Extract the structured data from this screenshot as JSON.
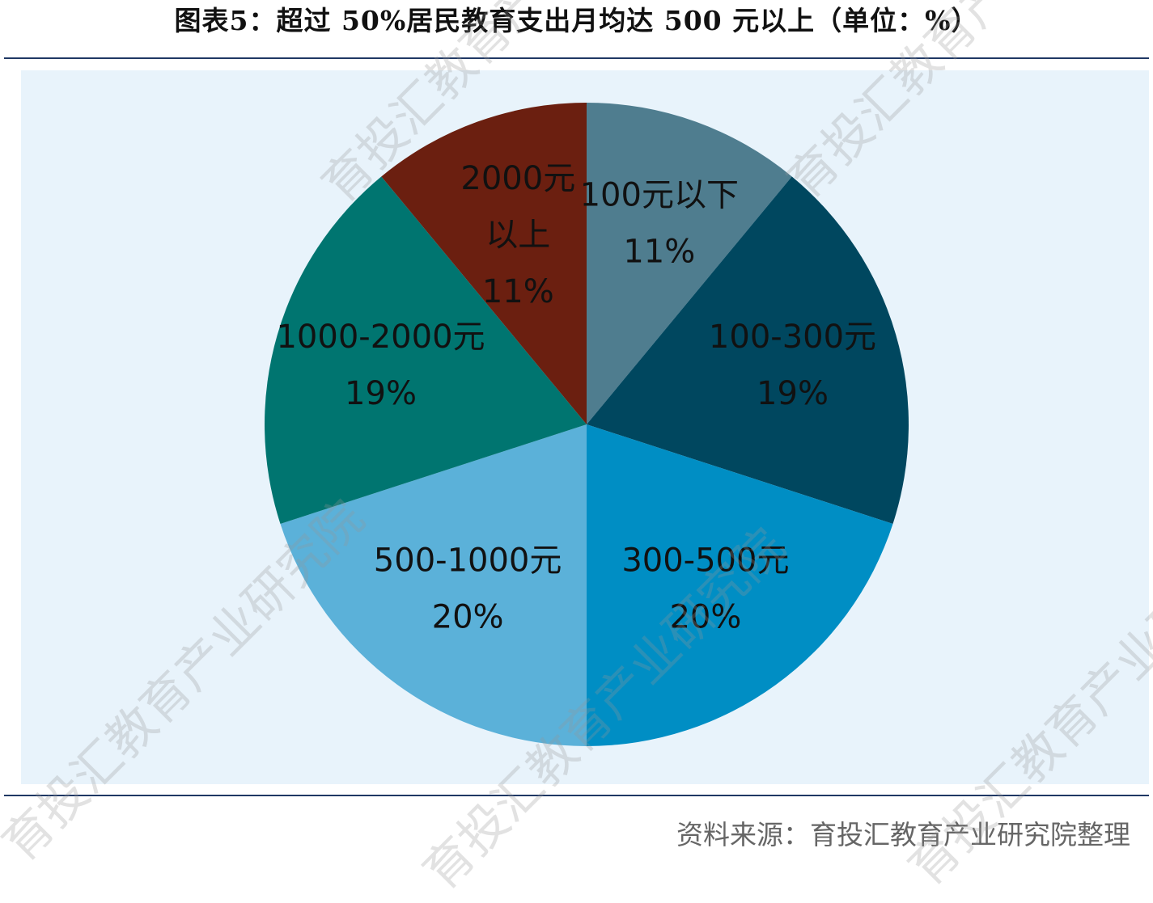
{
  "title": "图表5：超过 50%居民教育支出月均达 500 元以上（单位：%）",
  "source": "资料来源：育投汇教育产业研究院整理",
  "watermark_text": "育投汇教育产业研究院",
  "colors": {
    "background": "#e8f3fb",
    "rule": "#1f3864",
    "label_text": "#111111",
    "slice_colors": [
      "#4f7d8f",
      "#00475f",
      "#008ec4",
      "#5bb1d9",
      "#007570",
      "#6b1f10"
    ]
  },
  "chart_data": {
    "type": "pie",
    "title": "图表5：超过 50%居民教育支出月均达 500 元以上（单位：%）",
    "start_angle": "12 o'clock",
    "direction": "clockwise",
    "categories": [
      "100元以下",
      "100-300元",
      "300-500元",
      "500-1000元",
      "1000-2000元",
      "2000元以上"
    ],
    "values": [
      11,
      19,
      20,
      20,
      19,
      11
    ],
    "label_lines": [
      [
        "100元以下",
        "11%"
      ],
      [
        "100-300元",
        "19%"
      ],
      [
        "300-500元",
        "20%"
      ],
      [
        "500-1000元",
        "20%"
      ],
      [
        "1000-2000元",
        "19%"
      ],
      [
        "2000元",
        "以上",
        "11%"
      ]
    ],
    "legend": "none",
    "data_labels": "inside"
  }
}
